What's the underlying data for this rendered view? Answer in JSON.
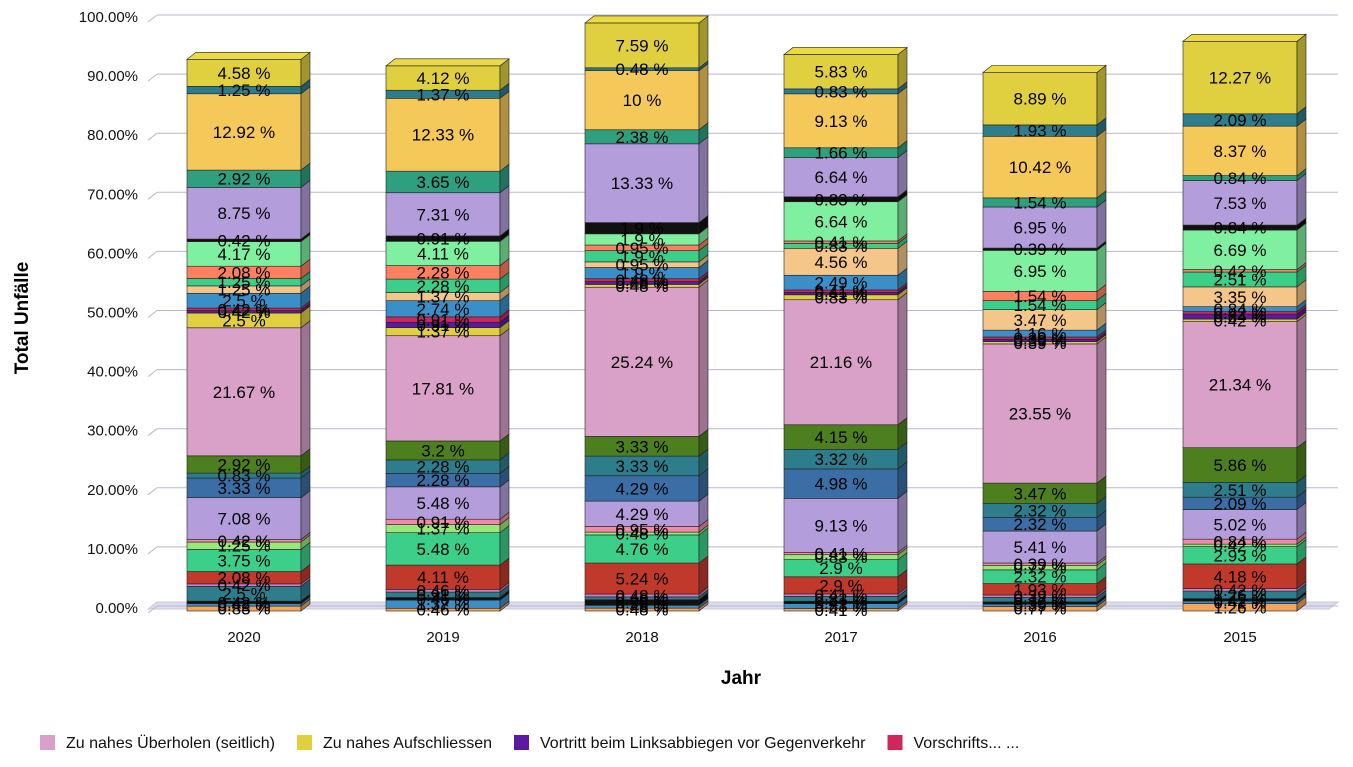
{
  "chart_data": {
    "type": "bar",
    "stacked": true,
    "three_d": true,
    "xlabel": "Jahr",
    "ylabel": "Total Unfälle",
    "ylim": [
      0,
      100
    ],
    "y_ticks": [
      "0.00%",
      "10.00%",
      "20.00%",
      "30.00%",
      "40.00%",
      "50.00%",
      "60.00%",
      "70.00%",
      "80.00%",
      "90.00%",
      "100.00%"
    ],
    "grid": true,
    "legend_position": "bottom",
    "categories": [
      "2020",
      "2019",
      "2018",
      "2017",
      "2016",
      "2015"
    ],
    "series": [
      {
        "name": "",
        "color": "#f4a65a",
        "values": [
          0.83,
          0.46,
          0.48,
          0.41,
          0.77,
          1.26
        ]
      },
      {
        "name": "",
        "color": "#3a8fc8",
        "values": [
          0.42,
          1.37,
          0.48,
          0.83,
          0.39,
          0.42
        ]
      },
      {
        "name": "",
        "color": "#111111",
        "values": [
          0.42,
          0.46,
          0.95,
          0.41,
          0.39,
          0.42
        ]
      },
      {
        "name": "",
        "color": "#2e7d8c",
        "values": [
          2.5,
          0.91,
          0.48,
          0.83,
          0.77,
          1.26
        ]
      },
      {
        "name": "",
        "color": "#d27ac0",
        "values": [
          0.42,
          0.46,
          0.48,
          0.41,
          0.39,
          0.42
        ]
      },
      {
        "name": "",
        "color": "#c0392b",
        "values": [
          2.08,
          4.11,
          5.24,
          2.9,
          1.93,
          4.18
        ]
      },
      {
        "name": "",
        "color": "#3ccf8a",
        "values": [
          3.75,
          5.48,
          4.76,
          2.9,
          2.32,
          2.93
        ]
      },
      {
        "name": "",
        "color": "#9be87a",
        "values": [
          1.25,
          1.37,
          0.48,
          0.83,
          0.77,
          0.42
        ]
      },
      {
        "name": "",
        "color": "#f08aa8",
        "values": [
          0.42,
          0.91,
          0.95,
          0.41,
          0.39,
          0.84
        ]
      },
      {
        "name": "",
        "color": "#b39ddb",
        "values": [
          7.08,
          5.48,
          4.29,
          9.13,
          5.41,
          5.02
        ]
      },
      {
        "name": "",
        "color": "#3b6ea5",
        "values": [
          3.33,
          2.28,
          4.29,
          4.98,
          2.32,
          2.09
        ]
      },
      {
        "name": "",
        "color": "#2e7d8c",
        "values": [
          0.83,
          2.28,
          3.33,
          3.32,
          2.32,
          2.51
        ]
      },
      {
        "name": "",
        "color": "#4e7f1e",
        "values": [
          2.92,
          3.2,
          3.33,
          4.15,
          3.47,
          5.86
        ]
      },
      {
        "name": "Zu nahes Überholen (seitlich)",
        "color": "#d9a0c8",
        "values": [
          21.67,
          17.81,
          25.24,
          21.16,
          23.55,
          21.34
        ]
      },
      {
        "name": "Zu nahes Aufschliessen",
        "color": "#e0d040",
        "values": [
          2.5,
          1.37,
          0.48,
          0.83,
          0.39,
          0.42
        ]
      },
      {
        "name": "Vortritt beim Linksabbiegen vor Gegenverkehr",
        "color": "#5b1aa0",
        "values": [
          0.42,
          0.91,
          0.48,
          0.41,
          0.39,
          0.84
        ]
      },
      {
        "name": "Vorschrifts... ...",
        "color": "#d0265c",
        "values": [
          0.42,
          0.91,
          0.48,
          0.41,
          0.39,
          0.42
        ]
      },
      {
        "name": "",
        "color": "#3a8fc8",
        "values": [
          2.5,
          2.74,
          1.9,
          2.49,
          1.16,
          0.84
        ]
      },
      {
        "name": "",
        "color": "#f4c68a",
        "values": [
          1.25,
          1.37,
          0.95,
          4.56,
          3.47,
          3.35
        ]
      },
      {
        "name": "",
        "color": "#3ccf8a",
        "values": [
          1.25,
          2.28,
          1.9,
          0.83,
          1.54,
          2.51
        ]
      },
      {
        "name": "",
        "color": "#ff8060",
        "values": [
          2.08,
          2.28,
          0.95,
          0.41,
          1.54,
          0.42
        ]
      },
      {
        "name": "",
        "color": "#7ef0a0",
        "values": [
          4.17,
          4.11,
          1.9,
          6.64,
          6.95,
          6.69
        ]
      },
      {
        "name": "",
        "color": "#111111",
        "values": [
          0.42,
          0.91,
          1.9,
          0.83,
          0.39,
          0.84
        ]
      },
      {
        "name": "",
        "color": "#b39ddb",
        "values": [
          8.75,
          7.31,
          13.33,
          6.64,
          6.95,
          7.53
        ]
      },
      {
        "name": "",
        "color": "#2ea080",
        "values": [
          2.92,
          3.65,
          2.38,
          1.66,
          1.54,
          0.84
        ]
      },
      {
        "name": "",
        "color": "#f5c85a",
        "values": [
          12.92,
          12.33,
          10,
          9.13,
          10.42,
          8.37
        ]
      },
      {
        "name": "",
        "color": "#2e7d8c",
        "values": [
          1.25,
          1.37,
          0.48,
          0.83,
          1.93,
          2.09
        ]
      },
      {
        "name": "",
        "color": "#e0d040",
        "values": [
          4.58,
          4.12,
          7.59,
          5.83,
          8.89,
          12.27
        ]
      }
    ],
    "segment_labels": [
      [
        "0.83 %",
        "0.42 %",
        "0.42 %",
        "2.5 %",
        "0.42 %",
        "2.08 %",
        "3.75 %",
        "1.25 %",
        "0.42 %",
        "7.08 %",
        "3.33 %",
        "0.83 %",
        "2.92 %",
        "21.67 %",
        "2.5 %",
        "0.42 %",
        "0.42 %",
        "2.5 %",
        "1.25 %",
        "1.25 %",
        "2.08 %",
        "4.17 %",
        "0.42 %",
        "8.75 %",
        "2.92 %",
        "12.92 %",
        "1.25 %",
        "4.58 %"
      ],
      [
        "0.46 %",
        "1.37 %",
        "0.46 %",
        "0.91 %",
        "0.46 %",
        "4.11 %",
        "5.48 %",
        "1.37 %",
        "0.91 %",
        "5.48 %",
        "2.28 %",
        "2.28 %",
        "3.2 %",
        "17.81 %",
        "1.37 %",
        "0.91 %",
        "0.91 %",
        "2.74 %",
        "1.37 %",
        "2.28 %",
        "2.28 %",
        "4.11 %",
        "0.91 %",
        "7.31 %",
        "3.65 %",
        "12.33 %",
        "1.37 %",
        "4.12 %"
      ],
      [
        "0.48 %",
        "0.48 %",
        "0.95 %",
        "0.48 %",
        "0.48 %",
        "5.24 %",
        "4.76 %",
        "0.48 %",
        "0.95 %",
        "4.29 %",
        "4.29 %",
        "3.33 %",
        "3.33 %",
        "25.24 %",
        "0.48 %",
        "0.48 %",
        "0.48 %",
        "1.9 %",
        "0.95 %",
        "1.9 %",
        "0.95 %",
        "1.9 %",
        "1.9 %",
        "13.33 %",
        "2.38 %",
        "10 %",
        "0.48 %",
        "7.59 %"
      ],
      [
        "0.41 %",
        "0.83 %",
        "0.41 %",
        "0.83 %",
        "0.41 %",
        "2.9 %",
        "2.9 %",
        "0.83 %",
        "0.41 %",
        "9.13 %",
        "4.98 %",
        "3.32 %",
        "4.15 %",
        "21.16 %",
        "0.83 %",
        "0.41 %",
        "0.41 %",
        "2.49 %",
        "4.56 %",
        "0.83 %",
        "0.41 %",
        "6.64 %",
        "0.83 %",
        "6.64 %",
        "1.66 %",
        "9.13 %",
        "0.83 %",
        "5.83 %"
      ],
      [
        "0.77 %",
        "0.39 %",
        "0.39 %",
        "0.77 %",
        "0.39 %",
        "1.93 %",
        "2.32 %",
        "0.77 %",
        "0.39 %",
        "5.41 %",
        "2.32 %",
        "2.32 %",
        "3.47 %",
        "23.55 %",
        "0.39 %",
        "0.39 %",
        "0.39 %",
        "1.16 %",
        "3.47 %",
        "1.54 %",
        "1.54 %",
        "6.95 %",
        "0.39 %",
        "6.95 %",
        "1.54 %",
        "10.42 %",
        "1.93 %",
        "8.89 %"
      ],
      [
        "1.26 %",
        "0.42 %",
        "0.42 %",
        "1.26 %",
        "0.42 %",
        "4.18 %",
        "2.93 %",
        "0.42 %",
        "0.84 %",
        "5.02 %",
        "2.09 %",
        "2.51 %",
        "5.86 %",
        "21.34 %",
        "0.42 %",
        "0.84 %",
        "0.42 %",
        "0.84 %",
        "3.35 %",
        "2.51 %",
        "0.42 %",
        "6.69 %",
        "0.84 %",
        "7.53 %",
        "0.84 %",
        "8.37 %",
        "2.09 %",
        "12.27 %"
      ]
    ]
  }
}
